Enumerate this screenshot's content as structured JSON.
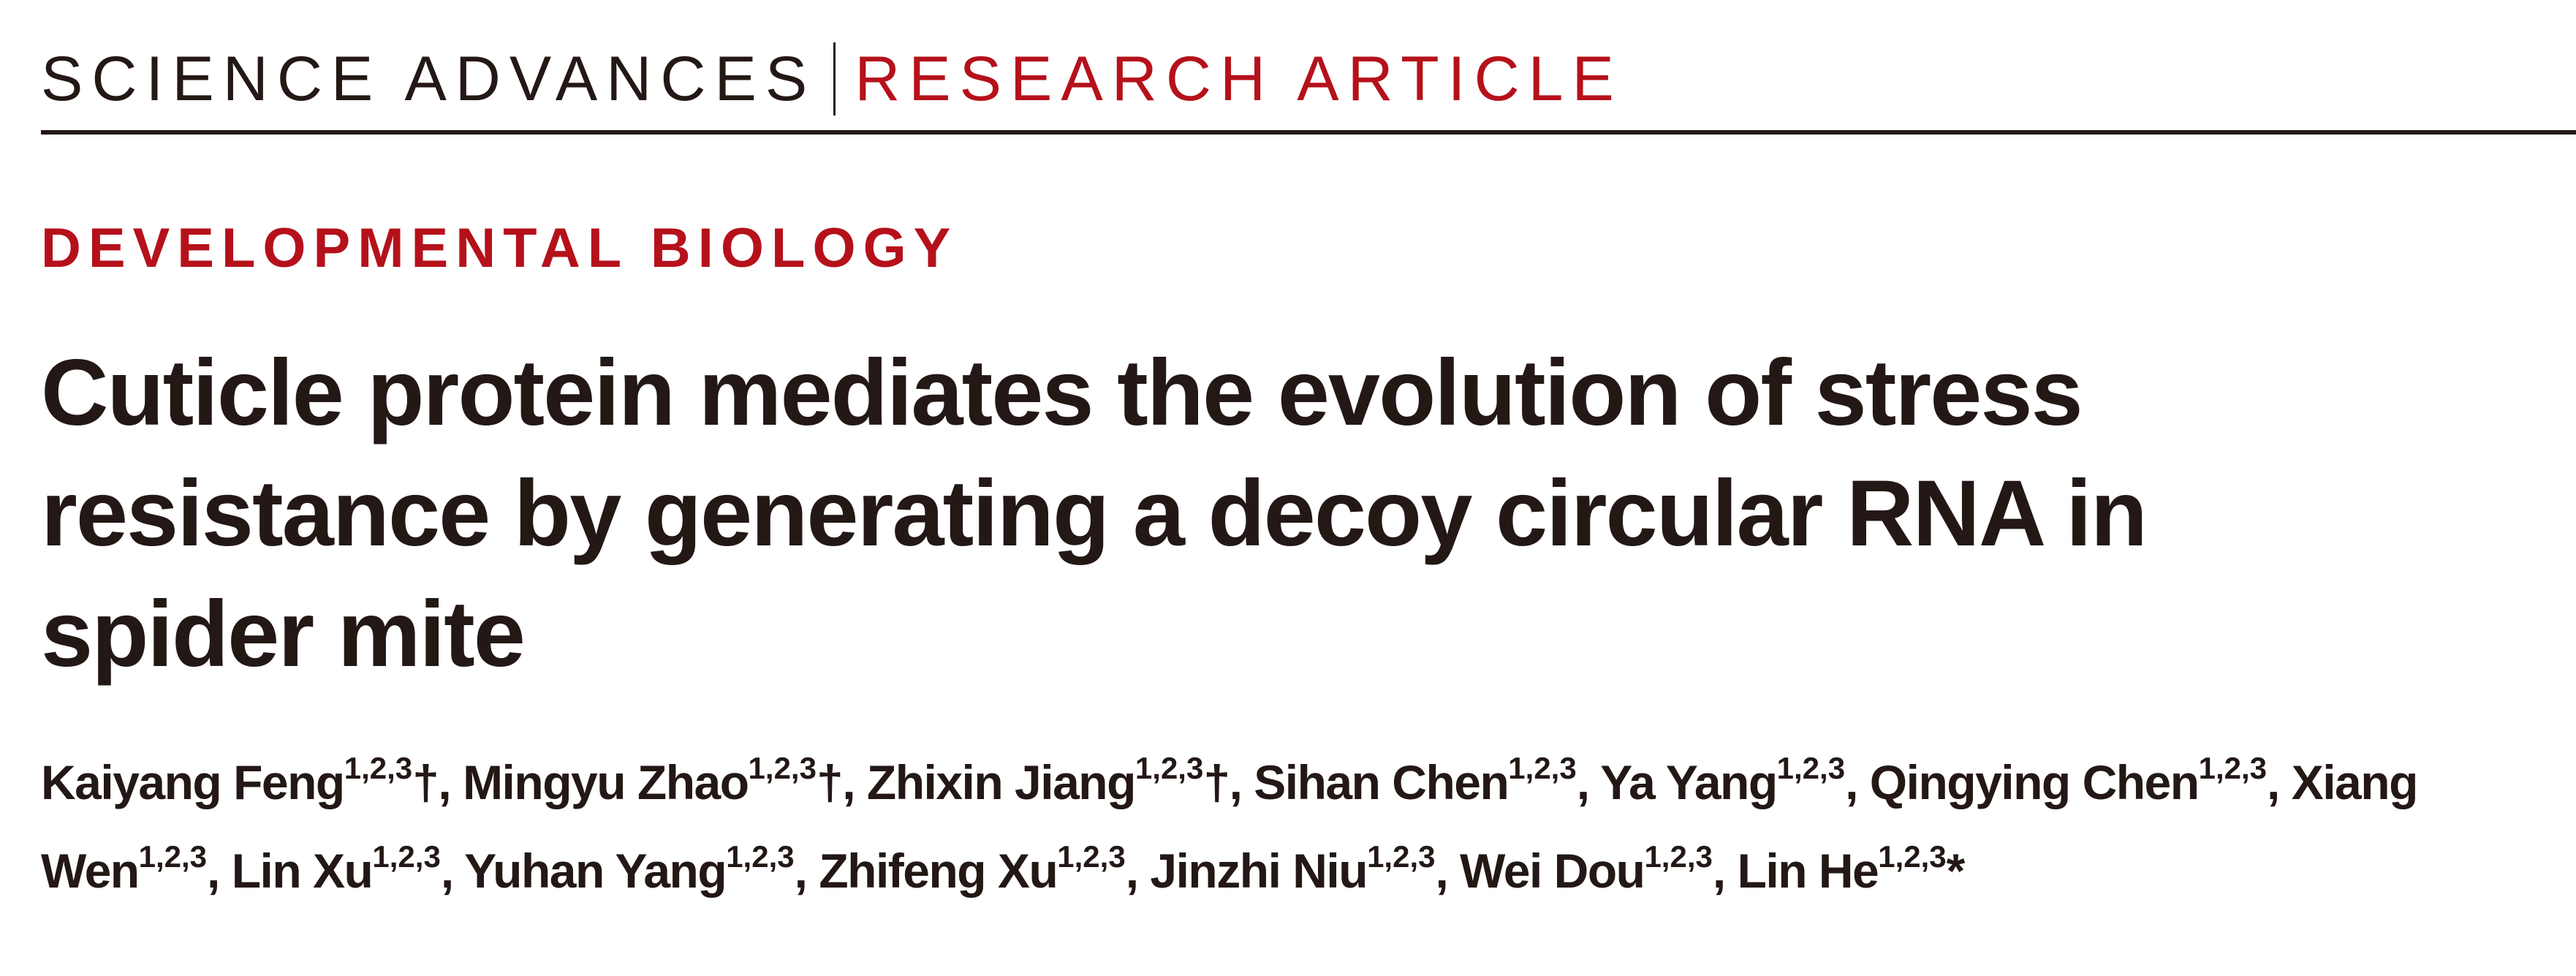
{
  "header": {
    "journal": "SCIENCE ADVANCES",
    "article_type": "RESEARCH ARTICLE"
  },
  "section": "DEVELOPMENTAL BIOLOGY",
  "title": "Cuticle protein mediates the evolution of stress resistance by generating a decoy circular RNA in spider mite",
  "authors": [
    {
      "name": "Kaiyang Feng",
      "aff": "1,2,3",
      "mark": "†"
    },
    {
      "name": "Mingyu Zhao",
      "aff": "1,2,3",
      "mark": "†"
    },
    {
      "name": "Zhixin Jiang",
      "aff": "1,2,3",
      "mark": "†"
    },
    {
      "name": "Sihan Chen",
      "aff": "1,2,3",
      "mark": ""
    },
    {
      "name": "Ya Yang",
      "aff": "1,2,3",
      "mark": ""
    },
    {
      "name": "Qingying Chen",
      "aff": "1,2,3",
      "mark": ""
    },
    {
      "name": "Xiang Wen",
      "aff": "1,2,3",
      "mark": ""
    },
    {
      "name": "Lin Xu",
      "aff": "1,2,3",
      "mark": ""
    },
    {
      "name": "Yuhan Yang",
      "aff": "1,2,3",
      "mark": ""
    },
    {
      "name": "Zhifeng Xu",
      "aff": "1,2,3",
      "mark": ""
    },
    {
      "name": "Jinzhi Niu",
      "aff": "1,2,3",
      "mark": ""
    },
    {
      "name": "Wei Dou",
      "aff": "1,2,3",
      "mark": ""
    },
    {
      "name": "Lin He",
      "aff": "1,2,3",
      "mark": "*"
    }
  ],
  "colors": {
    "accent": "#b5111b",
    "text": "#231815"
  }
}
